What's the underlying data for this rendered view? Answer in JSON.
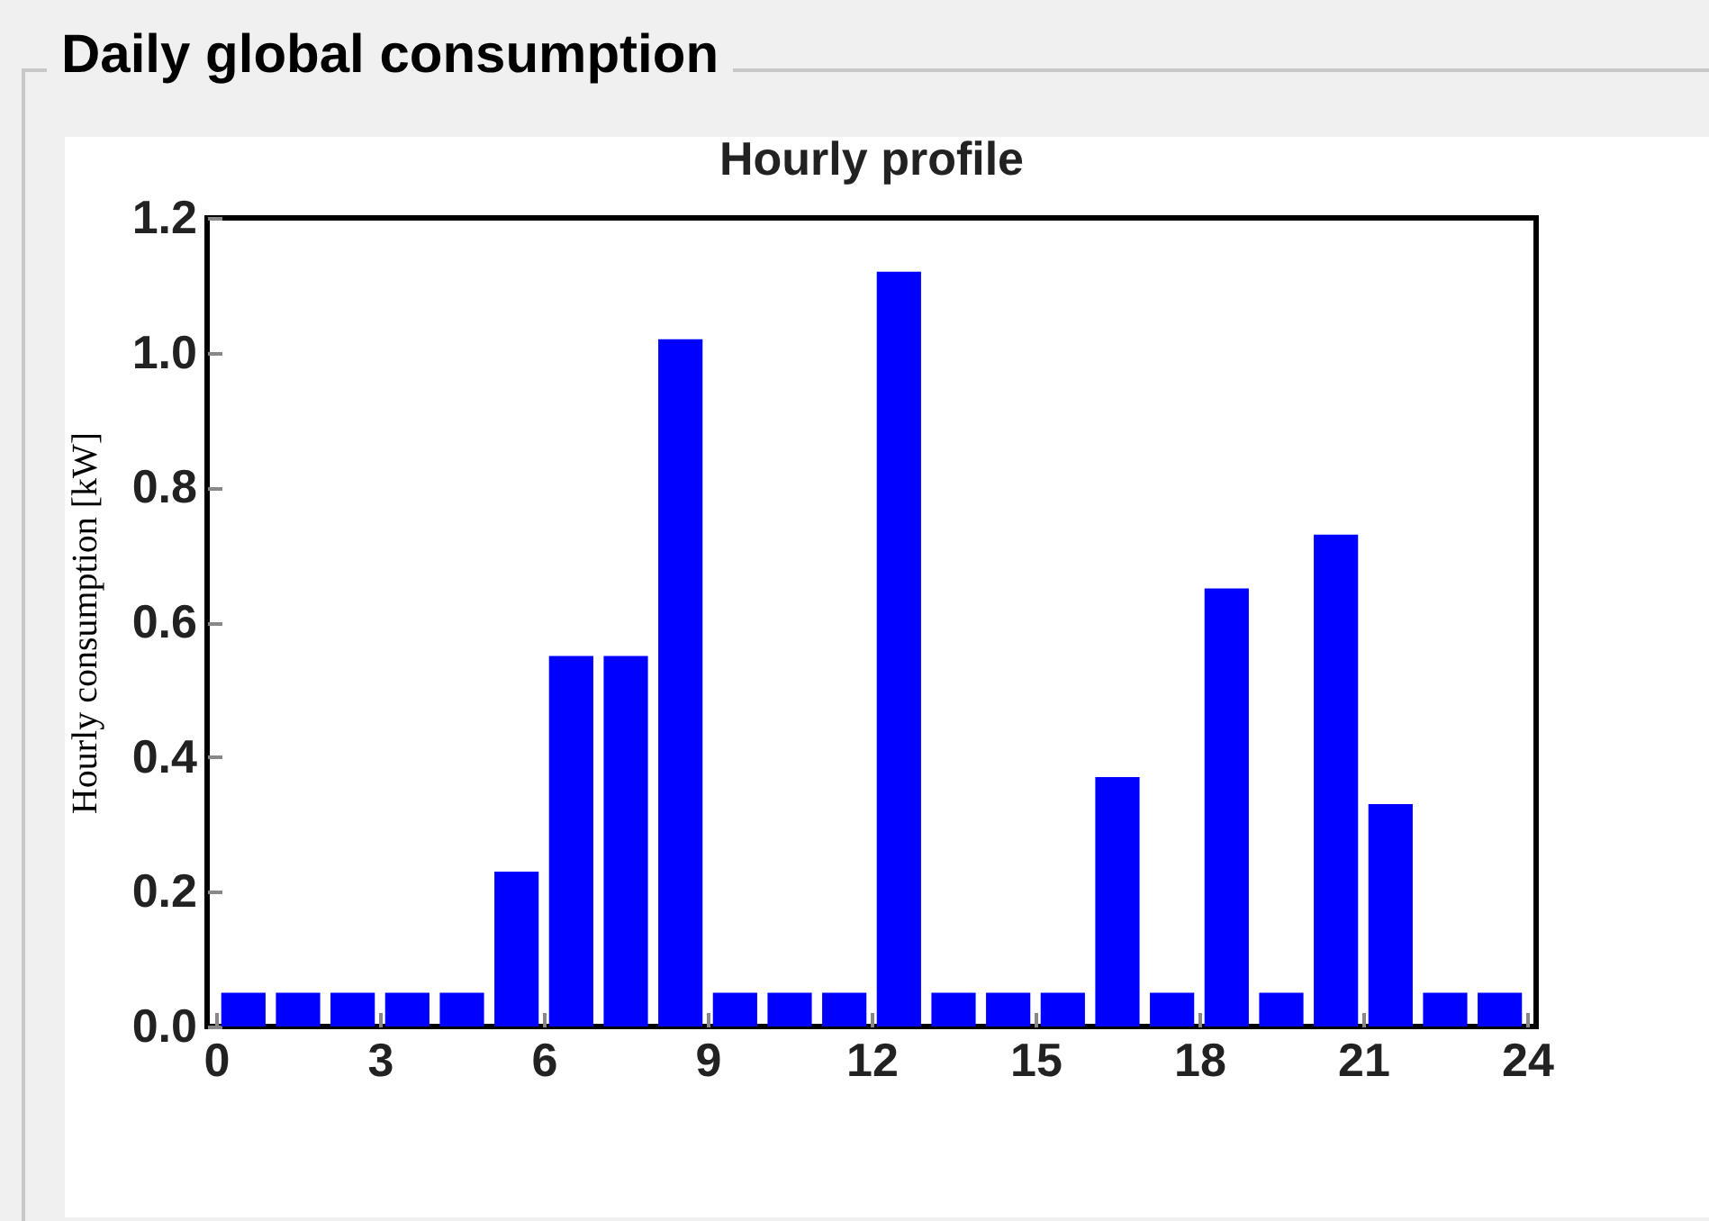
{
  "chart_data": {
    "type": "bar",
    "title": "Daily global consumption",
    "subtitle": "Hourly profile",
    "ylabel": "Hourly consumption [kW]",
    "x": [
      0.5,
      1.5,
      2.5,
      3.5,
      4.5,
      5.5,
      6.5,
      7.5,
      8.5,
      9.5,
      10.5,
      11.5,
      12.5,
      13.5,
      14.5,
      15.5,
      16.5,
      17.5,
      18.5,
      19.5,
      20.5,
      21.5,
      22.5,
      23.5
    ],
    "values": [
      0.05,
      0.05,
      0.05,
      0.05,
      0.05,
      0.23,
      0.55,
      0.55,
      1.02,
      0.05,
      0.05,
      0.05,
      1.12,
      0.05,
      0.05,
      0.05,
      0.37,
      0.05,
      0.65,
      0.05,
      0.73,
      0.33,
      0.05,
      0.05
    ],
    "color": "#0000ff",
    "xlim": [
      0,
      24
    ],
    "xticks": [
      0,
      3,
      6,
      9,
      12,
      15,
      18,
      21,
      24
    ],
    "ylim": [
      0,
      1.2
    ],
    "yticks": [
      {
        "value": 0,
        "label": "0.0"
      },
      {
        "value": 0.2,
        "label": "0.2"
      },
      {
        "value": 0.4,
        "label": "0.4"
      },
      {
        "value": 0.6,
        "label": "0.6"
      },
      {
        "value": 0.8,
        "label": "0.8"
      },
      {
        "value": 1,
        "label": "1.0"
      },
      {
        "value": 1.2,
        "label": "1.2"
      }
    ],
    "grid": false
  }
}
